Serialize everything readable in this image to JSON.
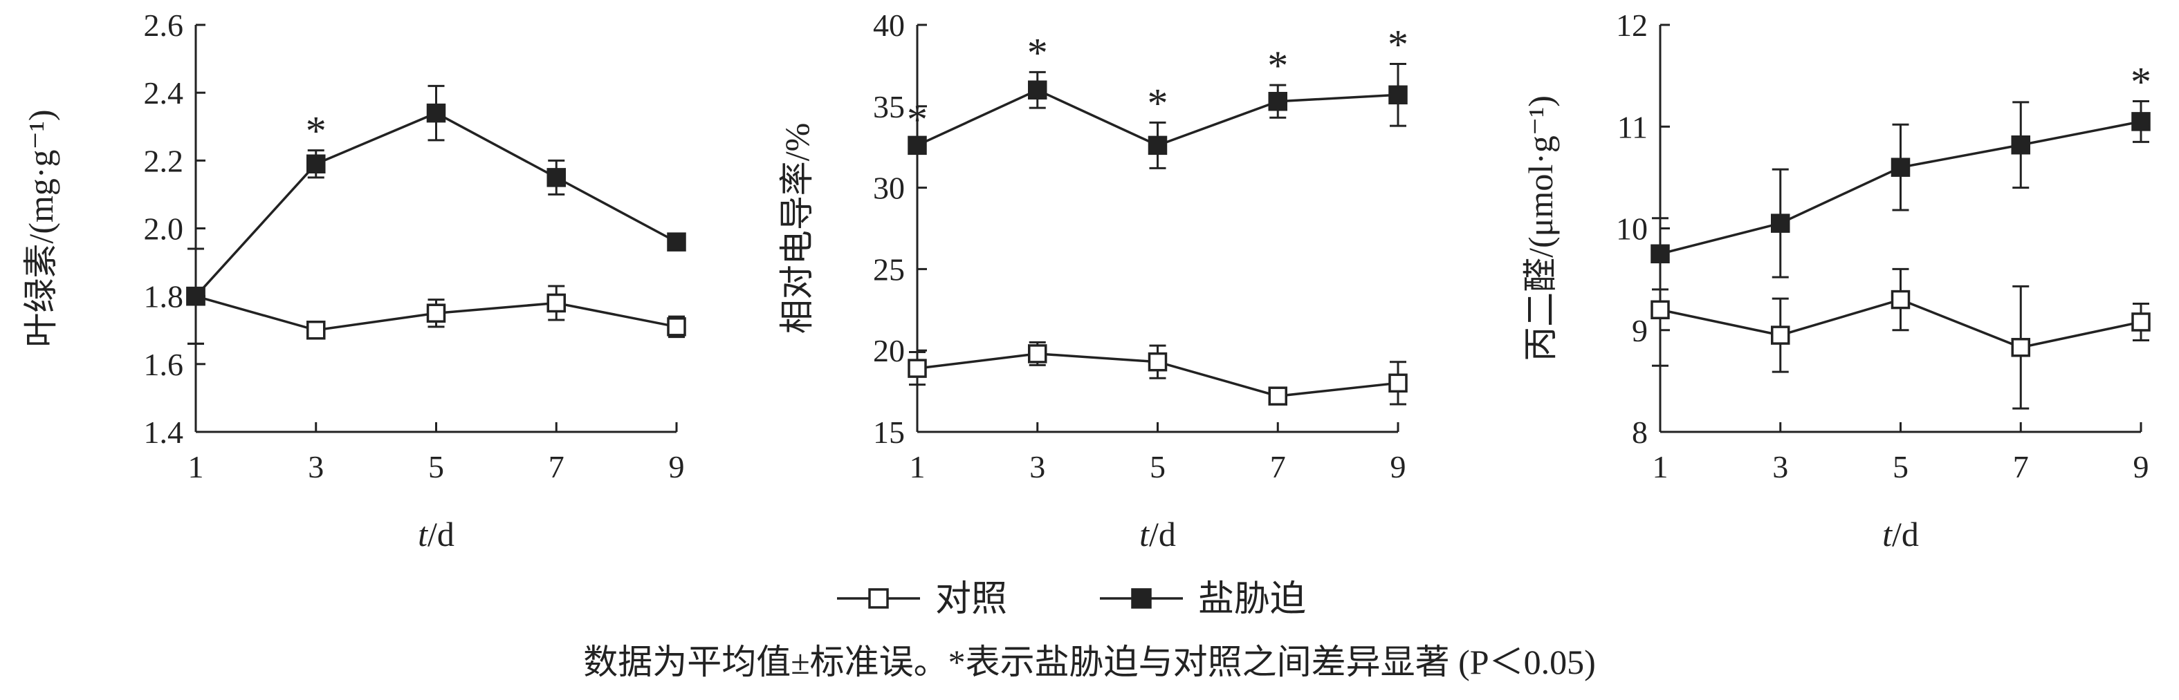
{
  "chart_data": [
    {
      "type": "line",
      "panel": "chlorophyll",
      "xlabel_italic": "t",
      "xlabel_unit": "/d",
      "ylabel": "叶绿素/(mg·g⁻¹)",
      "x": [
        1,
        3,
        5,
        7,
        9
      ],
      "ylim": [
        1.4,
        2.6
      ],
      "yticks": [
        1.4,
        1.6,
        1.8,
        2.0,
        2.2,
        2.4,
        2.6
      ],
      "ytick_labels": [
        "1.4",
        "1.6",
        "1.8",
        "2.0",
        "2.2",
        "2.4",
        "2.6"
      ],
      "series": [
        {
          "name": "对照",
          "marker": "open-square",
          "values": [
            1.8,
            1.7,
            1.75,
            1.78,
            1.71
          ],
          "errors": [
            0.14,
            0.01,
            0.04,
            0.05,
            0.03
          ]
        },
        {
          "name": "盐胁迫",
          "marker": "filled-square",
          "values": [
            1.8,
            2.19,
            2.34,
            2.15,
            1.96
          ],
          "errors": [
            0.14,
            0.04,
            0.08,
            0.05,
            0.01
          ]
        }
      ],
      "significance_x": [
        3
      ]
    },
    {
      "type": "line",
      "panel": "conductivity",
      "xlabel_italic": "t",
      "xlabel_unit": "/d",
      "ylabel": "相对电导率/%",
      "x": [
        1,
        3,
        5,
        7,
        9
      ],
      "ylim": [
        15,
        40
      ],
      "yticks": [
        15,
        20,
        25,
        30,
        35,
        40
      ],
      "ytick_labels": [
        "15",
        "20",
        "25",
        "30",
        "35",
        "40"
      ],
      "series": [
        {
          "name": "对照",
          "marker": "open-square",
          "values": [
            18.9,
            19.8,
            19.3,
            17.2,
            18.0
          ],
          "errors": [
            1.0,
            0.7,
            1.0,
            0.3,
            1.3
          ]
        },
        {
          "name": "盐胁迫",
          "marker": "filled-square",
          "values": [
            32.6,
            36.0,
            32.6,
            35.3,
            35.7
          ],
          "errors": [
            0.4,
            1.1,
            1.4,
            1.0,
            1.9
          ]
        }
      ],
      "significance_x": [
        1,
        3,
        5,
        7,
        9
      ]
    },
    {
      "type": "line",
      "panel": "mda",
      "xlabel_italic": "t",
      "xlabel_unit": "/d",
      "ylabel": "丙二醛/(μmol·g⁻¹)",
      "x": [
        1,
        3,
        5,
        7,
        9
      ],
      "ylim": [
        8,
        12
      ],
      "yticks": [
        8,
        9,
        10,
        11,
        12
      ],
      "ytick_labels": [
        "8",
        "9",
        "10",
        "11",
        "12"
      ],
      "series": [
        {
          "name": "对照",
          "marker": "open-square",
          "values": [
            9.2,
            8.95,
            9.3,
            8.83,
            9.08
          ],
          "errors": [
            0.55,
            0.36,
            0.3,
            0.6,
            0.18
          ]
        },
        {
          "name": "盐胁迫",
          "marker": "filled-square",
          "values": [
            9.75,
            10.05,
            10.6,
            10.82,
            11.05
          ],
          "errors": [
            0.35,
            0.53,
            0.42,
            0.42,
            0.2
          ]
        }
      ],
      "significance_x": [
        9
      ]
    }
  ],
  "significance_mark": "*",
  "legend": [
    {
      "label": "对照",
      "marker": "open-square"
    },
    {
      "label": "盐胁迫",
      "marker": "filled-square"
    }
  ],
  "caption": "数据为平均值±标准误。*表示盐胁迫与对照之间差异显著 (P＜0.05)",
  "colors": {
    "ink": "#222222",
    "background": "#ffffff"
  }
}
